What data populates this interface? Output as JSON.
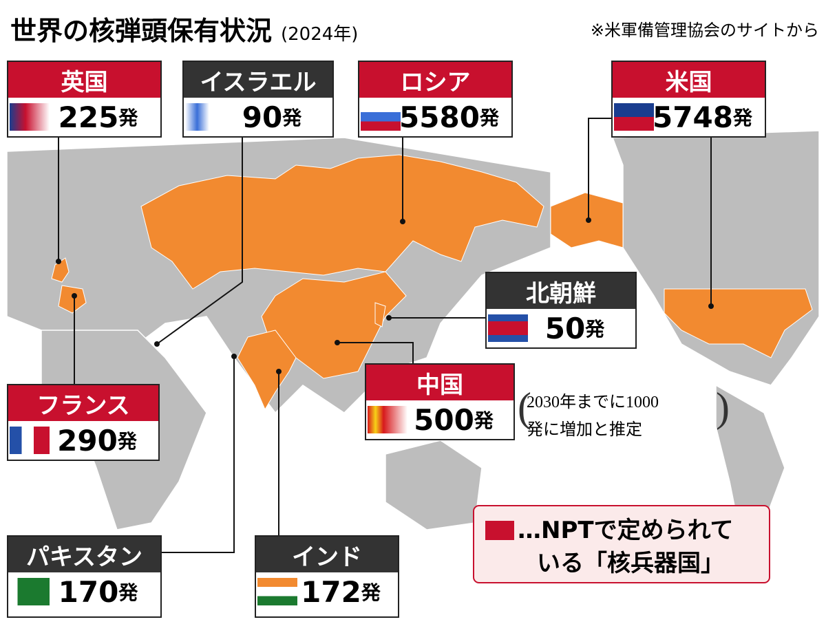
{
  "title": "世界の核弾頭保有状況",
  "subtitle": "(2024年)",
  "source": "※米軍備管理協会のサイトから",
  "countries": [
    {
      "name": "英国",
      "count": 225,
      "unit": "発",
      "header_color": "#c8102e"
    },
    {
      "name": "イスラエル",
      "count": 90,
      "unit": "発",
      "header_color": "#333333"
    },
    {
      "name": "ロシア",
      "count": 5580,
      "unit": "発",
      "header_color": "#c8102e"
    },
    {
      "name": "米国",
      "count": 5748,
      "unit": "発",
      "header_color": "#c8102e"
    },
    {
      "name": "北朝鮮",
      "count": 50,
      "unit": "発",
      "header_color": "#333333"
    },
    {
      "name": "中国",
      "count": 500,
      "unit": "発",
      "header_color": "#c8102e"
    },
    {
      "name": "フランス",
      "count": 290,
      "unit": "発",
      "header_color": "#c8102e"
    },
    {
      "name": "パキスタン",
      "count": 170,
      "unit": "発",
      "header_color": "#333333"
    },
    {
      "name": "インド",
      "count": 172,
      "unit": "発",
      "header_color": "#333333"
    }
  ],
  "china_note": [
    "2030年までに1000",
    "発に増加と推定"
  ],
  "legend": {
    "color": "#c8102e",
    "lines": [
      "…NPTで定められて",
      "いる「核兵器国」"
    ]
  }
}
